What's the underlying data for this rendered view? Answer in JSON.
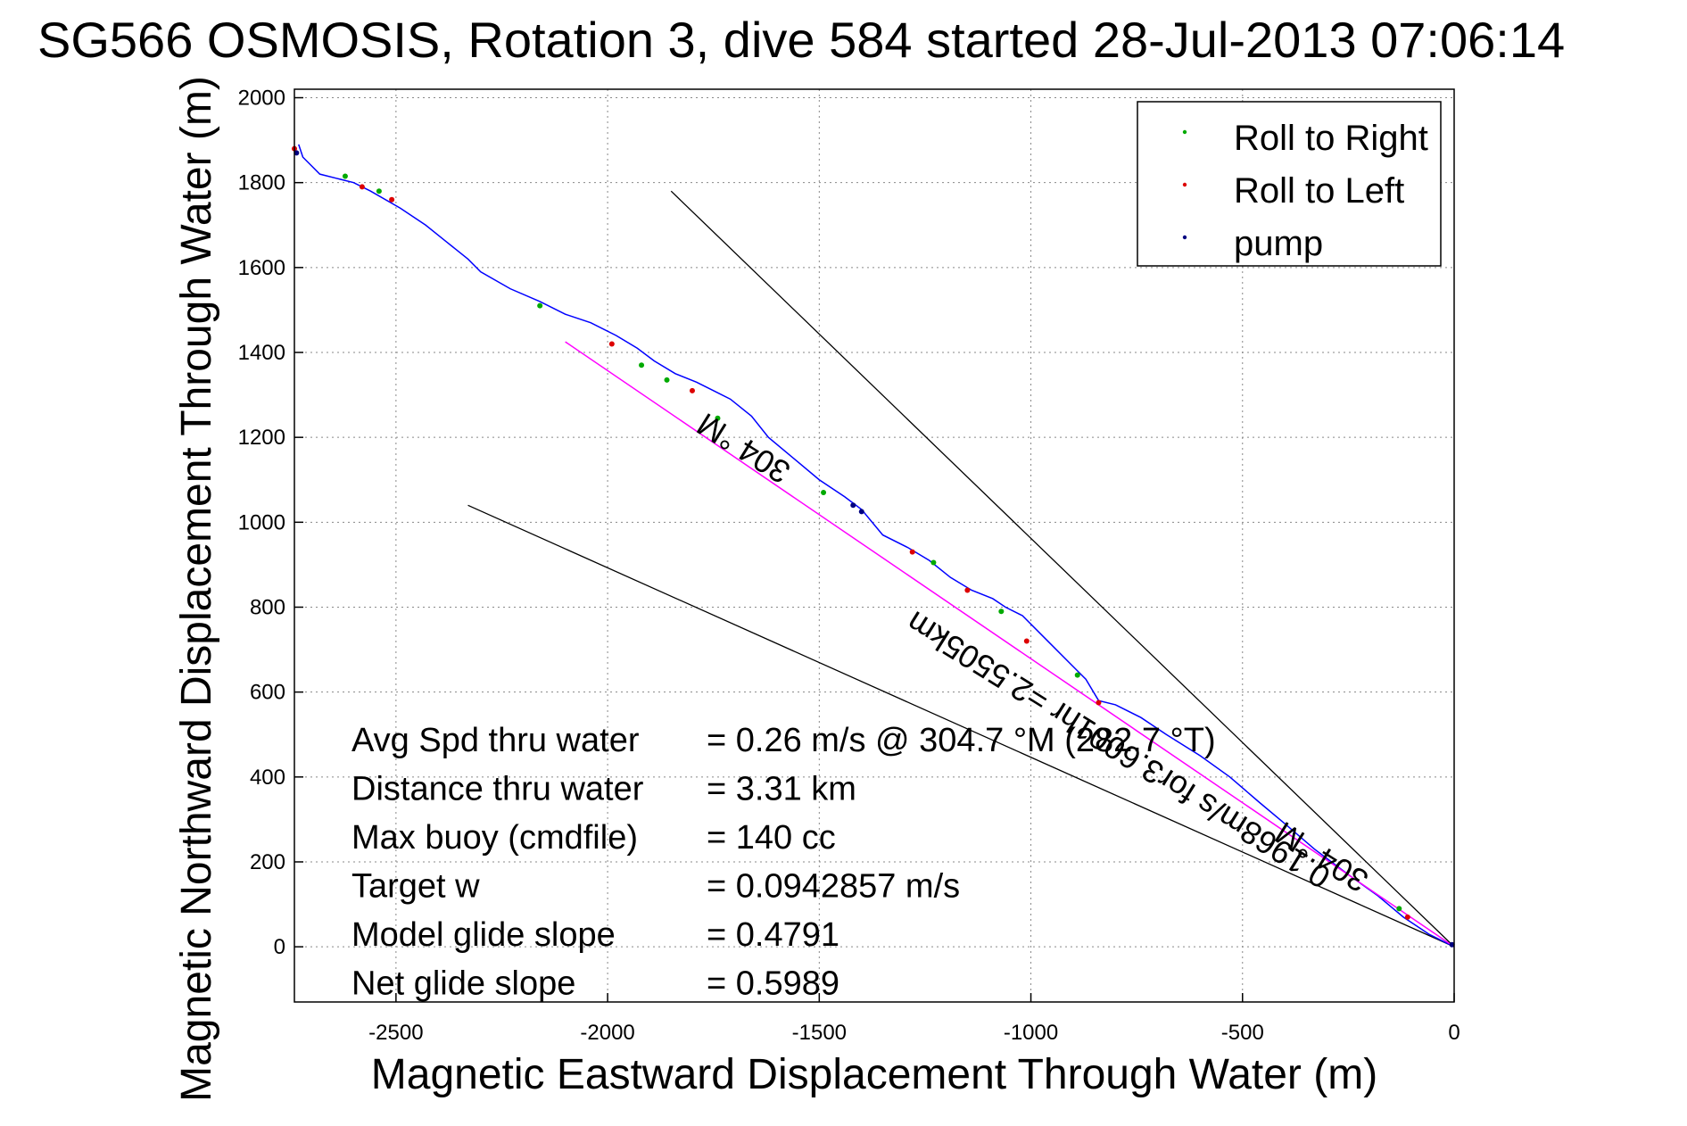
{
  "chart_data": {
    "type": "line",
    "title": "SG566 OSMOSIS, Rotation 3, dive 584 started 28-Jul-2013 07:06:14",
    "xlabel": "Magnetic Eastward Displacement Through Water (m)",
    "ylabel": "Magnetic Northward Displacement Through Water (m)",
    "xlim": [
      -2740,
      0
    ],
    "ylim": [
      -130,
      2020
    ],
    "xticks": [
      -2500,
      -2000,
      -1500,
      -1000,
      -500,
      0
    ],
    "yticks": [
      0,
      200,
      400,
      600,
      800,
      1000,
      1200,
      1400,
      1600,
      1800,
      2000
    ],
    "grid": true,
    "legend_position": "top-right",
    "colors": {
      "track": "#0000ff",
      "roll_right": "#00aa00",
      "roll_left": "#dd0000",
      "pump": "#000080",
      "net_line": "#ff00ff",
      "reference_lines": "#000000"
    },
    "legend": [
      {
        "label": "Roll to Right",
        "color": "#00aa00"
      },
      {
        "label": "Roll to Left",
        "color": "#dd0000"
      },
      {
        "label": "pump",
        "color": "#000080"
      }
    ],
    "series": [
      {
        "role": "glider-track",
        "x": [
          0,
          -60,
          -120,
          -180,
          -250,
          -330,
          -400,
          -460,
          -530,
          -600,
          -680,
          -740,
          -800,
          -840,
          -870,
          -900,
          -960,
          -1020,
          -1060,
          -1090,
          -1140,
          -1190,
          -1240,
          -1290,
          -1350,
          -1400,
          -1440,
          -1500,
          -1560,
          -1620,
          -1660,
          -1710,
          -1750,
          -1790,
          -1840,
          -1890,
          -1930,
          -1980,
          -2040,
          -2100,
          -2160,
          -2230,
          -2300,
          -2330,
          -2380,
          -2430,
          -2490,
          -2560,
          -2600,
          -2640,
          -2680,
          -2700,
          -2720,
          -2730
        ],
        "y": [
          0,
          30,
          70,
          120,
          170,
          230,
          290,
          340,
          400,
          450,
          500,
          540,
          570,
          580,
          630,
          660,
          720,
          780,
          800,
          820,
          840,
          870,
          910,
          940,
          970,
          1030,
          1060,
          1100,
          1150,
          1200,
          1250,
          1290,
          1310,
          1330,
          1350,
          1380,
          1410,
          1440,
          1470,
          1490,
          1520,
          1550,
          1590,
          1620,
          1660,
          1700,
          1740,
          1780,
          1800,
          1810,
          1820,
          1840,
          1860,
          1890
        ]
      },
      {
        "role": "net-displacement-line",
        "x": [
          0,
          -2100
        ],
        "y": [
          0,
          1425
        ]
      },
      {
        "role": "reference-line-upper",
        "x": [
          0,
          -1850
        ],
        "y": [
          0,
          1780
        ]
      },
      {
        "role": "reference-line-lower",
        "x": [
          0,
          -2330
        ],
        "y": [
          0,
          1040
        ]
      }
    ],
    "markers": {
      "roll_right": [
        {
          "x": -2620,
          "y": 1815
        },
        {
          "x": -2540,
          "y": 1780
        },
        {
          "x": -2160,
          "y": 1510
        },
        {
          "x": -1920,
          "y": 1370
        },
        {
          "x": -1860,
          "y": 1335
        },
        {
          "x": -1740,
          "y": 1245
        },
        {
          "x": -1490,
          "y": 1070
        },
        {
          "x": -1230,
          "y": 905
        },
        {
          "x": -1070,
          "y": 790
        },
        {
          "x": -890,
          "y": 640
        },
        {
          "x": -130,
          "y": 90
        }
      ],
      "roll_left": [
        {
          "x": -2740,
          "y": 1880
        },
        {
          "x": -2580,
          "y": 1790
        },
        {
          "x": -2510,
          "y": 1760
        },
        {
          "x": -1990,
          "y": 1420
        },
        {
          "x": -1800,
          "y": 1310
        },
        {
          "x": -1280,
          "y": 930
        },
        {
          "x": -1150,
          "y": 840
        },
        {
          "x": -1010,
          "y": 720
        },
        {
          "x": -840,
          "y": 575
        },
        {
          "x": -110,
          "y": 70
        }
      ],
      "pump": [
        {
          "x": -2735,
          "y": 1870
        },
        {
          "x": -1420,
          "y": 1040
        },
        {
          "x": -1400,
          "y": 1025
        },
        {
          "x": -5,
          "y": 5
        }
      ]
    },
    "annotations": {
      "upper_line_label": "304 °M",
      "lower_line_label": "304 °M",
      "net_line_label": "0.1968m/s for3.6001hr =2.5505km"
    },
    "stats": [
      {
        "label": "Avg Spd thru water",
        "value": "=  0.26 m/s @ 304.7 °M (282.7 °T)"
      },
      {
        "label": "Distance thru water",
        "value": "=  3.31 km"
      },
      {
        "label": "Max buoy (cmdfile)",
        "value": "= 140 cc"
      },
      {
        "label": "Target w",
        "value": "= 0.0942857 m/s"
      },
      {
        "label": "Model glide slope",
        "value": "= 0.4791"
      },
      {
        "label": "Net glide slope",
        "value": "= 0.5989"
      }
    ]
  }
}
